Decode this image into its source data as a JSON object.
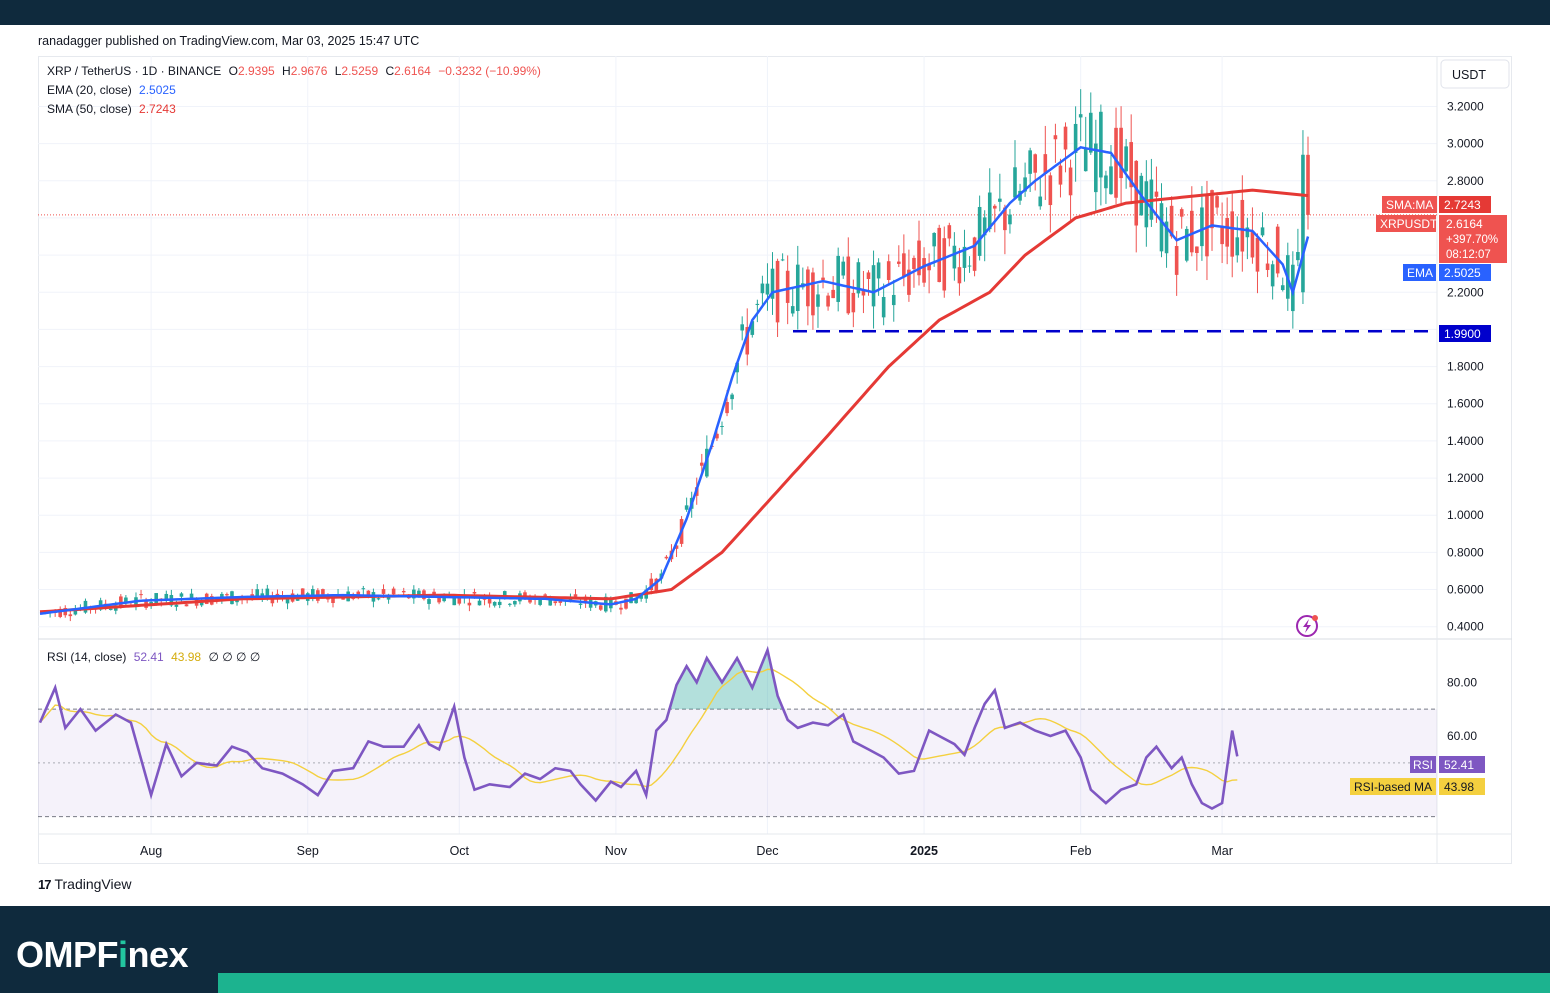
{
  "header": {
    "published": "ranadagger published on TradingView.com, Mar 03, 2025 15:47 UTC"
  },
  "legend": {
    "symbol": "XRP / TetherUS · 1D · BINANCE",
    "o_label": "O",
    "o_value": "2.9395",
    "h_label": "H",
    "h_value": "2.9676",
    "l_label": "L",
    "l_value": "2.5259",
    "c_label": "C",
    "c_value": "2.6164",
    "change": "−0.3232 (−10.99%)",
    "ema_label": "EMA (20, close)",
    "ema_value": "2.5025",
    "sma_label": "SMA (50, close)",
    "sma_value": "2.7243",
    "rsi_label": "RSI (14, close)",
    "rsi_value": "52.41",
    "rsi_ma_value": "43.98",
    "rsi_extra": "∅ ∅ ∅ ∅"
  },
  "axis": {
    "currency": "USDT",
    "price_ticks": [
      "3.2000",
      "3.0000",
      "2.8000",
      "2.2000",
      "1.8000",
      "1.6000",
      "1.4000",
      "1.2000",
      "1.0000",
      "0.8000",
      "0.6000",
      "0.4000"
    ],
    "rsi_ticks": [
      "80.00",
      "60.00",
      "40.00"
    ],
    "x_ticks": [
      "Aug",
      "Sep",
      "Oct",
      "Nov",
      "Dec",
      "2025",
      "Feb",
      "Mar"
    ]
  },
  "badges": {
    "sma_label": "SMA:MA",
    "sma_value": "2.7243",
    "price_label": "XRPUSDT",
    "price_value": "2.6164",
    "price_change": "+397.70%",
    "countdown": "08:12:07",
    "ema_label": "EMA",
    "ema_value": "2.5025",
    "support_value": "1.9900",
    "rsi_label": "RSI",
    "rsi_value": "52.41",
    "rsi_ma_label": "RSI-based MA",
    "rsi_ma_value": "43.98"
  },
  "branding": {
    "tradingview": "TradingView",
    "logo_prefix": "OMPF",
    "logo_i": "i",
    "logo_suffix": "nex"
  },
  "colors": {
    "up": "#26a69a",
    "down": "#ef5350",
    "ema": "#2962ff",
    "sma": "#e53935",
    "rsi": "#7e57c2",
    "rsi_ma": "#f4d03f",
    "support": "#0000cc"
  },
  "chart_data": {
    "type": "line",
    "title": "XRP / TetherUS · 1D · BINANCE",
    "x_ticks": [
      "Aug",
      "Sep",
      "Oct",
      "Nov",
      "Dec",
      "2025",
      "Feb",
      "Mar"
    ],
    "price": {
      "ylim": [
        0.35,
        3.45
      ],
      "support_level": 1.99,
      "last_price": 2.6164,
      "ema20": [
        [
          0,
          0.47
        ],
        [
          20,
          0.54
        ],
        [
          40,
          0.56
        ],
        [
          60,
          0.57
        ],
        [
          80,
          0.56
        ],
        [
          100,
          0.55
        ],
        [
          113,
          0.52
        ],
        [
          118,
          0.55
        ],
        [
          123,
          0.66
        ],
        [
          128,
          0.98
        ],
        [
          133,
          1.38
        ],
        [
          137,
          1.74
        ],
        [
          141,
          2.05
        ],
        [
          145,
          2.2
        ],
        [
          155,
          2.26
        ],
        [
          165,
          2.2
        ],
        [
          175,
          2.34
        ],
        [
          185,
          2.45
        ],
        [
          192,
          2.68
        ],
        [
          197,
          2.8
        ],
        [
          206,
          2.98
        ],
        [
          212,
          2.95
        ],
        [
          218,
          2.72
        ],
        [
          225,
          2.48
        ],
        [
          232,
          2.56
        ],
        [
          240,
          2.53
        ],
        [
          246,
          2.35
        ],
        [
          248,
          2.2
        ],
        [
          251,
          2.5
        ]
      ],
      "sma50": [
        [
          0,
          0.48
        ],
        [
          40,
          0.55
        ],
        [
          80,
          0.57
        ],
        [
          113,
          0.55
        ],
        [
          125,
          0.6
        ],
        [
          135,
          0.8
        ],
        [
          145,
          1.1
        ],
        [
          155,
          1.4
        ],
        [
          168,
          1.8
        ],
        [
          178,
          2.05
        ],
        [
          188,
          2.2
        ],
        [
          195,
          2.4
        ],
        [
          205,
          2.6
        ],
        [
          215,
          2.68
        ],
        [
          240,
          2.75
        ],
        [
          251,
          2.72
        ]
      ]
    },
    "rsi": {
      "ylim": [
        25,
        95
      ],
      "bands": [
        30,
        50,
        70
      ],
      "ma_value": 43.98,
      "series": [
        [
          0,
          65
        ],
        [
          3,
          78
        ],
        [
          5,
          63
        ],
        [
          8,
          70
        ],
        [
          11,
          62
        ],
        [
          15,
          68
        ],
        [
          18,
          65
        ],
        [
          22,
          38
        ],
        [
          25,
          57
        ],
        [
          28,
          45
        ],
        [
          31,
          50
        ],
        [
          35,
          49
        ],
        [
          38,
          56
        ],
        [
          41,
          54
        ],
        [
          44,
          48
        ],
        [
          48,
          46
        ],
        [
          52,
          42
        ],
        [
          55,
          38
        ],
        [
          58,
          47
        ],
        [
          62,
          48
        ],
        [
          65,
          58
        ],
        [
          68,
          56
        ],
        [
          72,
          56
        ],
        [
          75,
          64
        ],
        [
          77,
          57
        ],
        [
          79,
          55
        ],
        [
          82,
          71
        ],
        [
          84,
          52
        ],
        [
          86,
          40
        ],
        [
          89,
          42
        ],
        [
          93,
          41
        ],
        [
          96,
          46
        ],
        [
          99,
          44
        ],
        [
          102,
          48
        ],
        [
          105,
          47
        ],
        [
          107,
          42
        ],
        [
          110,
          36
        ],
        [
          113,
          43
        ],
        [
          115,
          41
        ],
        [
          118,
          47
        ],
        [
          120,
          38
        ],
        [
          122,
          62
        ],
        [
          124,
          66
        ],
        [
          126,
          79
        ],
        [
          128,
          86
        ],
        [
          130,
          80
        ],
        [
          132,
          89
        ],
        [
          135,
          80
        ],
        [
          138,
          89
        ],
        [
          141,
          78
        ],
        [
          144,
          92
        ],
        [
          146,
          75
        ],
        [
          148,
          66
        ],
        [
          150,
          63
        ],
        [
          153,
          65
        ],
        [
          156,
          64
        ],
        [
          159,
          68
        ],
        [
          161,
          58
        ],
        [
          164,
          55
        ],
        [
          167,
          52
        ],
        [
          170,
          46
        ],
        [
          173,
          47
        ],
        [
          176,
          62
        ],
        [
          178,
          60
        ],
        [
          181,
          57
        ],
        [
          183,
          53
        ],
        [
          185,
          63
        ],
        [
          187,
          72
        ],
        [
          189,
          77
        ],
        [
          191,
          63
        ],
        [
          194,
          65
        ],
        [
          197,
          62
        ],
        [
          200,
          60
        ],
        [
          203,
          62
        ],
        [
          206,
          52
        ],
        [
          208,
          40
        ],
        [
          211,
          35
        ],
        [
          214,
          40
        ],
        [
          217,
          42
        ],
        [
          219,
          52
        ],
        [
          221,
          56
        ],
        [
          224,
          48
        ],
        [
          226,
          52
        ],
        [
          228,
          42
        ],
        [
          230,
          35
        ],
        [
          232,
          33
        ],
        [
          234,
          35
        ],
        [
          236,
          62
        ],
        [
          237,
          52.41
        ]
      ]
    }
  }
}
